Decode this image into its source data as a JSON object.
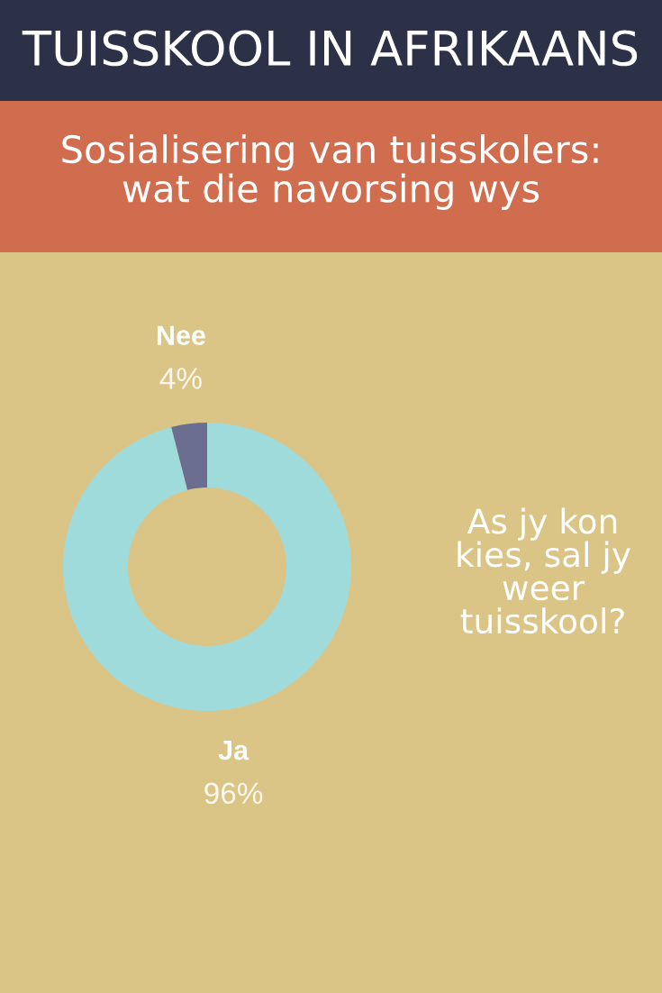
{
  "chart_data": {
    "type": "donut",
    "title": "TUISSKOOL IN AFRIKAANS",
    "subtitle": "Sosialisering van tuisskolers: wat die navorsing wys",
    "categories": [
      "Ja",
      "Nee"
    ],
    "values": [
      96,
      4
    ],
    "colors": [
      "#9fdbdb",
      "#6b6e8f"
    ],
    "value_labels": [
      "96%",
      "4%"
    ],
    "annotations": [
      "As jy kon kies, sal jy weer tuisskool?"
    ]
  }
}
